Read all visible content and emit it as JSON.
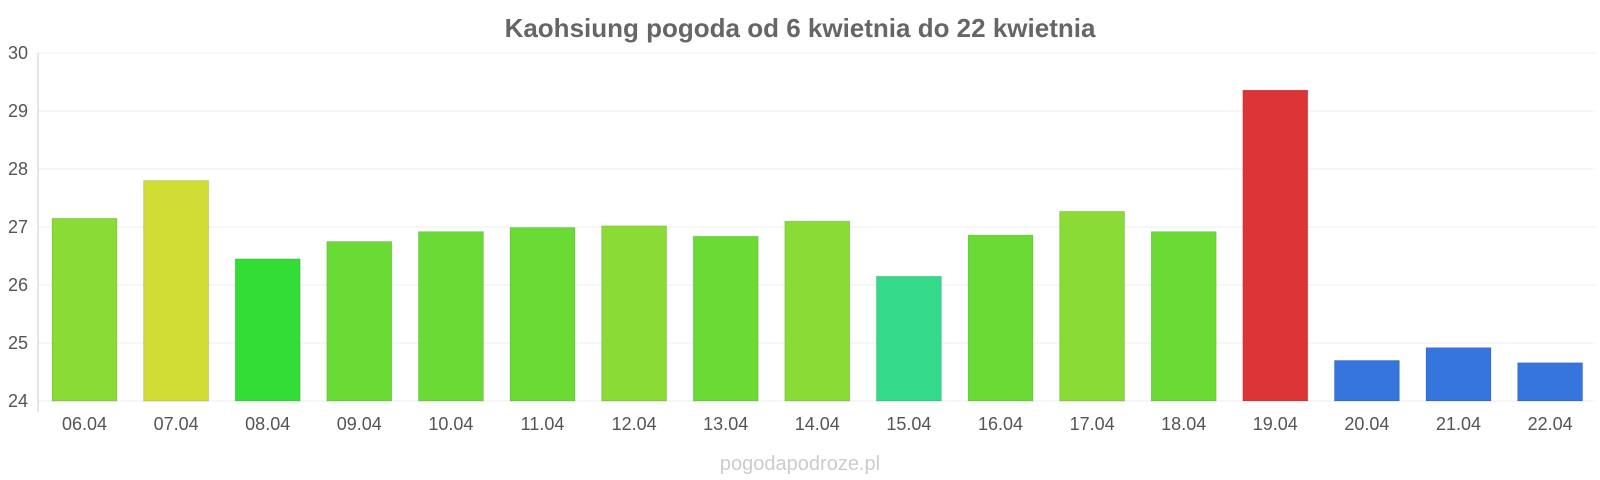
{
  "chart_data": {
    "type": "bar",
    "title": "Kaohsiung pogoda od 6 kwietnia do 22 kwietnia",
    "xlabel": "",
    "ylabel": "",
    "ylim": [
      24,
      30
    ],
    "yticks": [
      "24",
      "25",
      "26",
      "27",
      "28",
      "29",
      "30"
    ],
    "grid": true,
    "categories": [
      "06.04",
      "07.04",
      "08.04",
      "09.04",
      "10.04",
      "11.04",
      "12.04",
      "13.04",
      "14.04",
      "15.04",
      "16.04",
      "17.04",
      "18.04",
      "19.04",
      "20.04",
      "21.04",
      "22.04"
    ],
    "values": [
      27.15,
      27.8,
      26.45,
      26.75,
      26.92,
      26.99,
      27.02,
      26.84,
      27.1,
      26.15,
      26.86,
      27.27,
      26.92,
      29.36,
      24.7,
      24.92,
      24.66
    ],
    "colors": [
      "#8adb35",
      "#cfdd35",
      "#33dd35",
      "#6adb35",
      "#6adb35",
      "#6adb35",
      "#8adb35",
      "#6adb35",
      "#8adb35",
      "#35d98a",
      "#6adb35",
      "#8adb35",
      "#6adb35",
      "#dd3535",
      "#3575dd",
      "#3575dd",
      "#3575dd"
    ]
  },
  "watermark": "pogodapodroze.pl"
}
